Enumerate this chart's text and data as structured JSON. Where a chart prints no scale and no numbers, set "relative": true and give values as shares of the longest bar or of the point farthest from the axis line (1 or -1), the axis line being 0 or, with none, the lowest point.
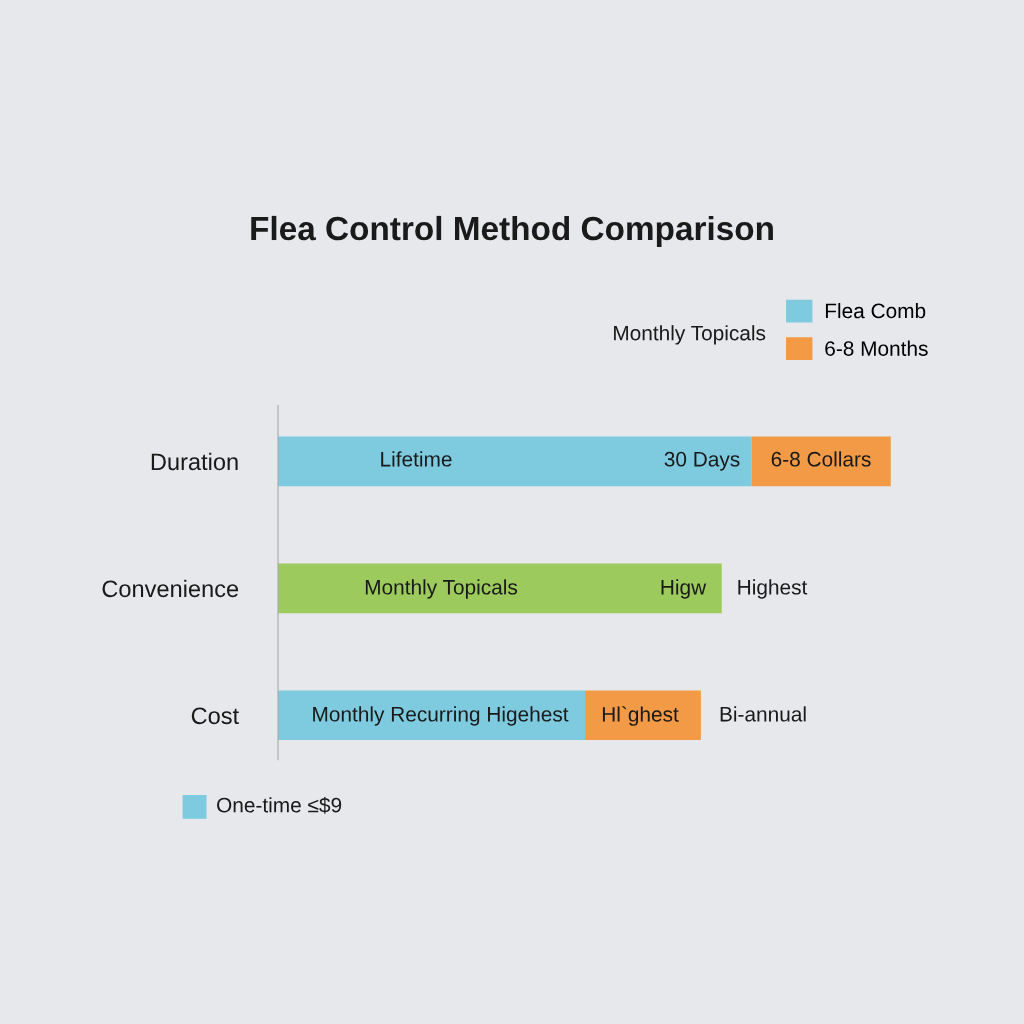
{
  "chart_data": {
    "type": "bar",
    "orientation": "horizontal",
    "stacked": true,
    "relative": true,
    "title": "Flea Control Method Comparison",
    "categories": [
      "Duration",
      "Convenience",
      "Cost"
    ],
    "series": [
      {
        "name": "Flea Comb",
        "color": "#7ecbe0",
        "values": [
          0.773,
          null,
          0.501
        ]
      },
      {
        "name": "6-8 Months",
        "color": "#f29a45",
        "values": [
          0.227,
          null,
          0.189
        ]
      },
      {
        "color": "#9dca5c",
        "values": [
          null,
          0.724,
          null
        ]
      }
    ],
    "legend": "top right",
    "annotations": [
      "Monthly Topicals",
      "One-time ≤$9",
      "Lifetime",
      "30 Days",
      "6-8 Collars",
      "Monthly Topicals",
      "Higw",
      "Highest",
      "Monthly Recurring Higehest",
      "Hl`ghest",
      "Bi-annual"
    ]
  }
}
